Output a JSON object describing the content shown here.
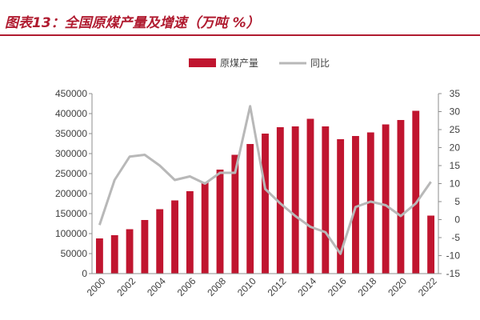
{
  "title": "图表13：全国原煤产量及增速（万吨 %）",
  "chart_data": {
    "type": "bar",
    "categories": [
      "2000",
      "2001",
      "2002",
      "2003",
      "2004",
      "2005",
      "2006",
      "2007",
      "2008",
      "2009",
      "2010",
      "2011",
      "2012",
      "2013",
      "2014",
      "2015",
      "2016",
      "2017",
      "2018",
      "2019",
      "2020",
      "2021",
      "2022"
    ],
    "x_tick_labels": [
      "2000",
      "2002",
      "2004",
      "2006",
      "2008",
      "2010",
      "2012",
      "2014",
      "2016",
      "2018",
      "2020",
      "2022"
    ],
    "series": [
      {
        "name": "原煤产量",
        "type": "bar",
        "axis": "left",
        "color": "#c0152f",
        "values": [
          88000,
          96000,
          111000,
          134000,
          161000,
          183000,
          206000,
          229000,
          260000,
          297000,
          324000,
          350000,
          366000,
          368000,
          387000,
          368000,
          336000,
          344000,
          353000,
          373000,
          384000,
          407000,
          145000
        ]
      },
      {
        "name": "同比",
        "type": "line",
        "axis": "right",
        "color": "#b8b8b8",
        "values": [
          -1.5,
          11,
          17.5,
          18,
          15,
          11,
          12,
          10,
          13,
          13,
          31.5,
          8.5,
          4.5,
          1,
          -2,
          -3.5,
          -9.5,
          3.5,
          5,
          4,
          1,
          4.5,
          10.5
        ]
      }
    ],
    "y_left": {
      "min": 0,
      "max": 450000,
      "ticks": [
        0,
        50000,
        100000,
        150000,
        200000,
        250000,
        300000,
        350000,
        400000,
        450000
      ]
    },
    "y_right": {
      "min": -15,
      "max": 35,
      "ticks": [
        -15,
        -10,
        -5,
        0,
        5,
        10,
        15,
        20,
        25,
        30,
        35
      ]
    },
    "grid": false,
    "legend_position": "top-center"
  }
}
